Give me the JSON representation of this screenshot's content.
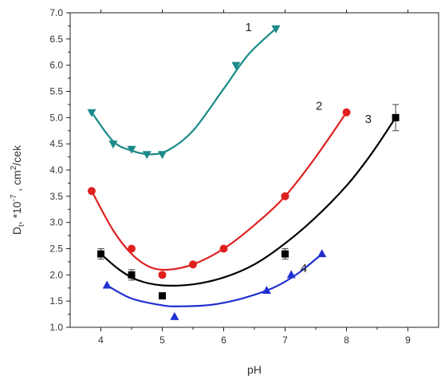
{
  "chart_data": {
    "type": "scatter",
    "title": "",
    "xlabel": "pH",
    "ylabel": "D",
    "ylabel_sub": "t",
    "ylabel_mid": ", *10",
    "ylabel_exp": "-7",
    "ylabel_unit": " , cm",
    "ylabel_unit_exp": "2",
    "ylabel_tail": "/cek",
    "xlim": [
      3.5,
      9.5
    ],
    "ylim": [
      1.0,
      7.0
    ],
    "xticks": [
      "4",
      "5",
      "6",
      "7",
      "8",
      "9"
    ],
    "yticks": [
      "1.0",
      "1.5",
      "2.0",
      "2.5",
      "3.0",
      "3.5",
      "4.0",
      "4.5",
      "5.0",
      "5.5",
      "6.0",
      "6.5",
      "7.0"
    ],
    "grid": false,
    "series": [
      {
        "name": "1",
        "color": "#1a8a8a",
        "marker": "triangle-down",
        "points": [
          [
            3.85,
            5.1
          ],
          [
            4.2,
            4.5
          ],
          [
            4.5,
            4.4
          ],
          [
            4.75,
            4.3
          ],
          [
            5.0,
            4.3
          ],
          [
            6.2,
            6.0
          ],
          [
            6.85,
            6.7
          ]
        ],
        "fit": [
          [
            3.85,
            5.1
          ],
          [
            4.2,
            4.55
          ],
          [
            4.5,
            4.37
          ],
          [
            4.8,
            4.3
          ],
          [
            5.1,
            4.38
          ],
          [
            5.5,
            4.75
          ],
          [
            6.0,
            5.55
          ],
          [
            6.4,
            6.2
          ],
          [
            6.85,
            6.7
          ]
        ]
      },
      {
        "name": "2",
        "color": "#e02020",
        "marker": "circle",
        "points": [
          [
            3.85,
            3.6
          ],
          [
            4.5,
            2.5
          ],
          [
            5.0,
            2.0
          ],
          [
            5.5,
            2.2
          ],
          [
            6.0,
            2.5
          ],
          [
            7.0,
            3.5
          ],
          [
            8.0,
            5.1
          ]
        ],
        "fit": [
          [
            3.85,
            3.6
          ],
          [
            4.2,
            2.85
          ],
          [
            4.5,
            2.4
          ],
          [
            4.8,
            2.15
          ],
          [
            5.1,
            2.1
          ],
          [
            5.5,
            2.2
          ],
          [
            6.0,
            2.5
          ],
          [
            6.5,
            2.95
          ],
          [
            7.0,
            3.5
          ],
          [
            7.5,
            4.25
          ],
          [
            8.0,
            5.1
          ]
        ]
      },
      {
        "name": "3",
        "color": "#000000",
        "marker": "square",
        "points": [
          [
            4.0,
            2.4
          ],
          [
            4.5,
            2.0
          ],
          [
            5.0,
            1.6
          ],
          [
            7.0,
            2.4
          ],
          [
            8.8,
            5.0
          ]
        ],
        "errors": [
          0.1,
          0.1,
          0.0,
          0.1,
          0.25
        ],
        "fit": [
          [
            4.0,
            2.4
          ],
          [
            4.3,
            2.1
          ],
          [
            4.6,
            1.9
          ],
          [
            5.0,
            1.8
          ],
          [
            5.5,
            1.82
          ],
          [
            6.0,
            1.95
          ],
          [
            6.5,
            2.2
          ],
          [
            7.0,
            2.6
          ],
          [
            7.5,
            3.1
          ],
          [
            8.0,
            3.7
          ],
          [
            8.4,
            4.3
          ],
          [
            8.8,
            5.0
          ]
        ]
      },
      {
        "name": "4",
        "color": "#1f2fd0",
        "marker": "triangle-up",
        "points": [
          [
            4.1,
            1.8
          ],
          [
            5.2,
            1.2
          ],
          [
            6.7,
            1.7
          ],
          [
            7.1,
            2.0
          ],
          [
            7.6,
            2.4
          ]
        ],
        "fit": [
          [
            4.1,
            1.8
          ],
          [
            4.5,
            1.55
          ],
          [
            5.0,
            1.42
          ],
          [
            5.3,
            1.4
          ],
          [
            5.8,
            1.43
          ],
          [
            6.3,
            1.55
          ],
          [
            6.8,
            1.75
          ],
          [
            7.2,
            2.02
          ],
          [
            7.6,
            2.4
          ]
        ]
      }
    ],
    "curve_labels": [
      {
        "text": "1",
        "x": 6.35,
        "y": 6.65
      },
      {
        "text": "2",
        "x": 7.5,
        "y": 5.15
      },
      {
        "text": "3",
        "x": 8.3,
        "y": 4.9
      },
      {
        "text": "4",
        "x": 7.25,
        "y": 2.05
      }
    ]
  }
}
